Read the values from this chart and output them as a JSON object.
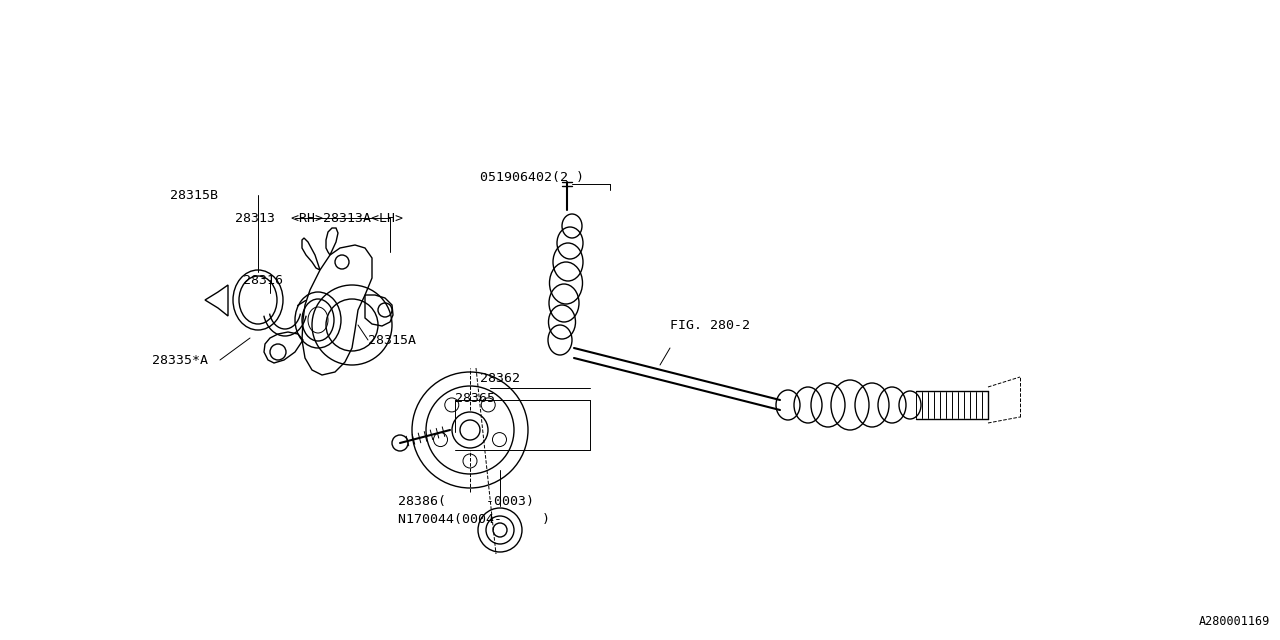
{
  "bg_color": "#ffffff",
  "line_color": "#000000",
  "fig_width": 12.8,
  "fig_height": 6.4,
  "watermark": "A280001169",
  "labels": {
    "051906402": [
      0.478,
      0.895,
      "051906402(2 )"
    ],
    "28315B": [
      0.175,
      0.82,
      "28315B"
    ],
    "28313": [
      0.235,
      0.77,
      "28313  <RH>28313A<LH>"
    ],
    "28316": [
      0.245,
      0.7,
      "28316"
    ],
    "28315A": [
      0.36,
      0.545,
      "28315A"
    ],
    "28335A": [
      0.155,
      0.455,
      "28335*A"
    ],
    "28365": [
      0.45,
      0.44,
      "28365"
    ],
    "28362": [
      0.47,
      0.395,
      "28362"
    ],
    "FIG280": [
      0.62,
      0.64,
      "FIG. 280-2"
    ],
    "28386": [
      0.395,
      0.145,
      "28386(     -0003)"
    ],
    "N170044": [
      0.395,
      0.105,
      "N170044(0004-     )"
    ]
  }
}
